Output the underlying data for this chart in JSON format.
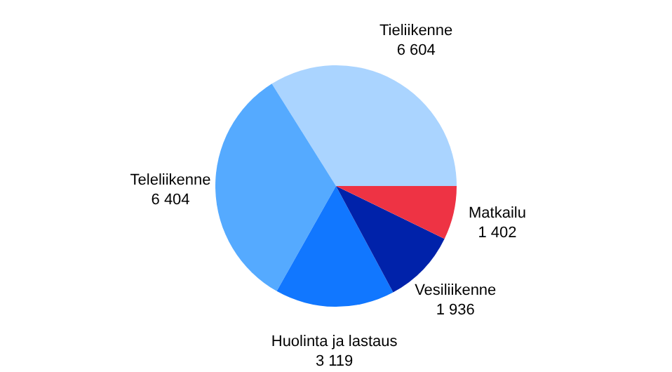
{
  "chart_data": {
    "type": "pie",
    "categories": [
      "Tieliikenne",
      "Teleliikenne",
      "Huolinta ja lastaus",
      "Vesiliikenne",
      "Matkailu"
    ],
    "values": [
      6604,
      6404,
      3119,
      1936,
      1402
    ],
    "value_labels": [
      "6 604",
      "6 404",
      "3 119",
      "1 936",
      "1 402"
    ],
    "colors": [
      "#aad4ff",
      "#55aaff",
      "#1177ff",
      "#0022aa",
      "#ee3344"
    ]
  }
}
